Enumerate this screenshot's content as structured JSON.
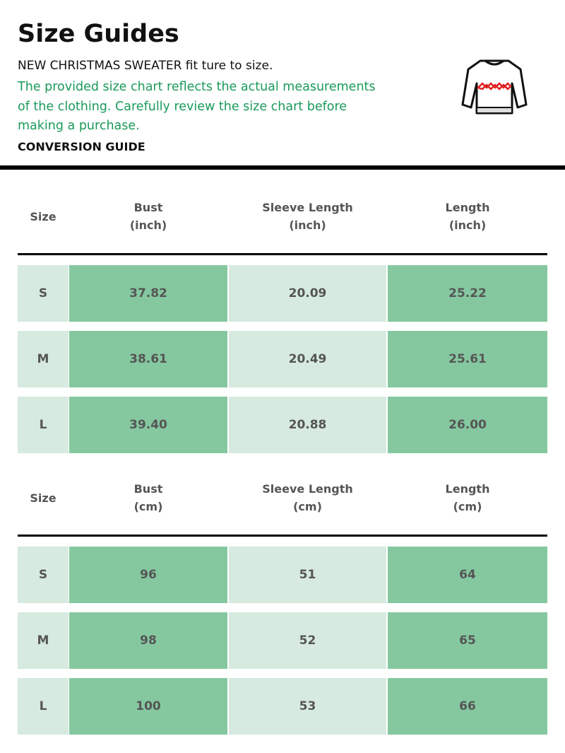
{
  "header": {
    "title": "Size Guides",
    "subtitle": "NEW CHRISTMAS SWEATER fit ture to size.",
    "note_lines": [
      "The provided size chart reflects the actual measurements",
      "of the clothing. Carefully review the size chart before",
      "making a purchase."
    ],
    "section_label": "CONVERSION GUIDE"
  },
  "tables": [
    {
      "columns": [
        {
          "name": "Size"
        },
        {
          "name": "Bust",
          "unit": "(inch)"
        },
        {
          "name": "Sleeve Length",
          "unit": "(inch)"
        },
        {
          "name": "Length",
          "unit": "(inch)"
        }
      ],
      "rows": [
        [
          "S",
          "37.82",
          "20.09",
          "25.22"
        ],
        [
          "M",
          "38.61",
          "20.49",
          "25.61"
        ],
        [
          "L",
          "39.40",
          "20.88",
          "26.00"
        ]
      ]
    },
    {
      "columns": [
        {
          "name": "Size"
        },
        {
          "name": "Bust",
          "unit": "(cm)"
        },
        {
          "name": "Sleeve Length",
          "unit": "(cm)"
        },
        {
          "name": "Length",
          "unit": "(cm)"
        }
      ],
      "rows": [
        [
          "S",
          "96",
          "51",
          "64"
        ],
        [
          "M",
          "98",
          "52",
          "65"
        ],
        [
          "L",
          "100",
          "53",
          "66"
        ]
      ]
    }
  ]
}
